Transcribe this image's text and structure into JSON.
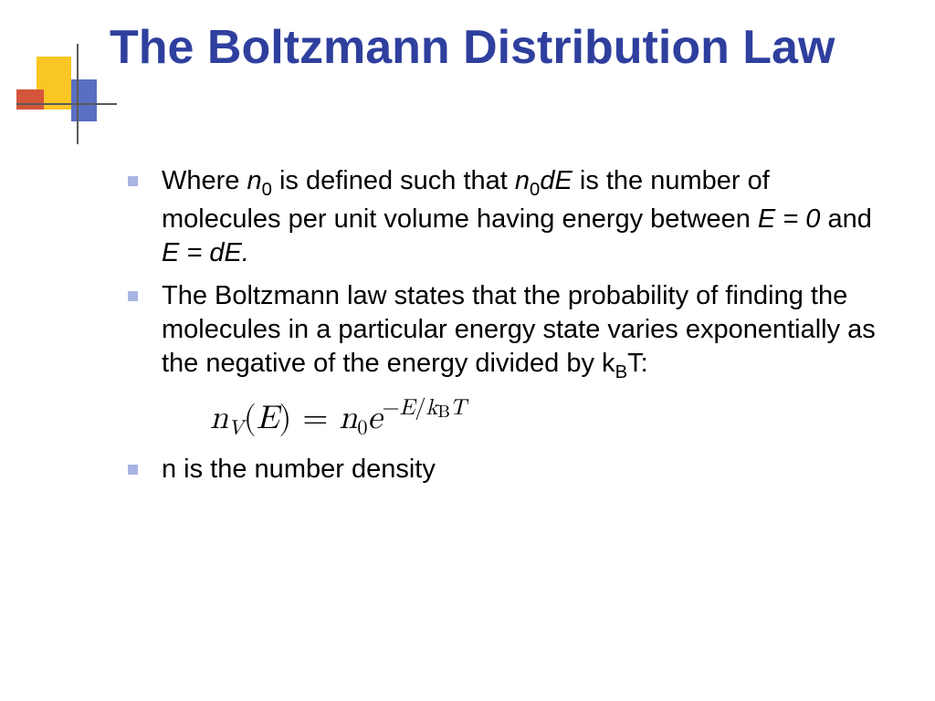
{
  "colors": {
    "title": "#2f3f9e",
    "bullet_marker": "#a8b4e2",
    "body_text": "#000000",
    "decor_yellow": "#f9c623",
    "decor_red": "#d4553a",
    "decor_blue": "#5a6fc2",
    "decor_line": "#5a5a5a",
    "background": "#ffffff"
  },
  "typography": {
    "title_fontsize": 52,
    "title_weight": 700,
    "body_fontsize": 29,
    "formula_fontsize": 36,
    "font_family_ui": "Verdana",
    "font_family_formula": "Cambria Math"
  },
  "title": "The Boltzmann Distribution Law",
  "bullets": {
    "b1": {
      "pre": "Where ",
      "n": "n",
      "sub0a": "0",
      "mid1": " is defined such that ",
      "sub0b": "0",
      "dE": "dE",
      "mid2": " is the number of molecules per unit volume having energy between ",
      "Eeq0": "E = 0",
      "and": " and ",
      "EeqdE": "E = dE.",
      "full_plain": "Where n0 is defined such that n0dE is the number of molecules per unit volume having energy between E = 0 and E = dE."
    },
    "b2": {
      "pre": "The Boltzmann law states that the probability of finding the molecules in a particular energy state varies exponentially as the negative of the energy divided by k",
      "subB": "B",
      "post": "T:",
      "full_plain": "The Boltzmann law states that the probability of finding the molecules in a particular energy state varies exponentially as the negative of the energy divided by kBT:"
    },
    "b3": {
      "text": "n is the number density"
    }
  },
  "formula": {
    "lhs_var": "n",
    "lhs_sub": "V",
    "lhs_arg": "E",
    "rhs_coef": "n",
    "rhs_coef_sub": "0",
    "rhs_base": "e",
    "exp_minus": "−",
    "exp_num": "E",
    "exp_slash": "/",
    "exp_k": "k",
    "exp_k_sub": "B",
    "exp_T": "T",
    "plain": "n_V(E) = n_0 e^{-E / k_B T}"
  }
}
